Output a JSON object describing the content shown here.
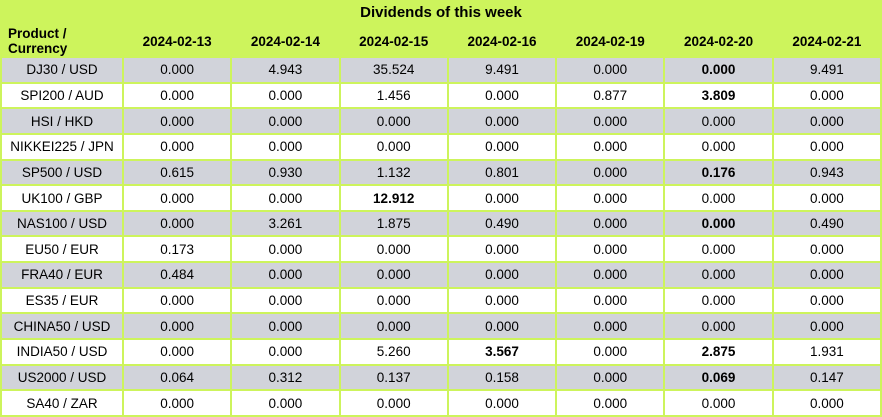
{
  "title": "Dividends of this week",
  "colors": {
    "header_bg": "#cdf45c",
    "row_alt_bg": "#d1d3da",
    "row_bg": "#ffffff",
    "text": "#000000"
  },
  "chart_data": {
    "type": "table",
    "title": "Dividends of this week",
    "product_header": "Product / Currency",
    "date_headers": [
      "2024-02-13",
      "2024-02-14",
      "2024-02-15",
      "2024-02-16",
      "2024-02-19",
      "2024-02-20",
      "2024-02-21"
    ],
    "rows": [
      {
        "product": "DJ30 / USD",
        "values": [
          "0.000",
          "4.943",
          "35.524",
          "9.491",
          "0.000",
          "0.000",
          "9.491"
        ],
        "bold": [
          5
        ]
      },
      {
        "product": "SPI200 / AUD",
        "values": [
          "0.000",
          "0.000",
          "1.456",
          "0.000",
          "0.877",
          "3.809",
          "0.000"
        ],
        "bold": [
          5
        ]
      },
      {
        "product": "HSI / HKD",
        "values": [
          "0.000",
          "0.000",
          "0.000",
          "0.000",
          "0.000",
          "0.000",
          "0.000"
        ],
        "bold": []
      },
      {
        "product": "NIKKEI225 / JPN",
        "values": [
          "0.000",
          "0.000",
          "0.000",
          "0.000",
          "0.000",
          "0.000",
          "0.000"
        ],
        "bold": []
      },
      {
        "product": "SP500 / USD",
        "values": [
          "0.615",
          "0.930",
          "1.132",
          "0.801",
          "0.000",
          "0.176",
          "0.943"
        ],
        "bold": [
          5
        ]
      },
      {
        "product": "UK100 / GBP",
        "values": [
          "0.000",
          "0.000",
          "12.912",
          "0.000",
          "0.000",
          "0.000",
          "0.000"
        ],
        "bold": [
          2
        ]
      },
      {
        "product": "NAS100 / USD",
        "values": [
          "0.000",
          "3.261",
          "1.875",
          "0.490",
          "0.000",
          "0.000",
          "0.490"
        ],
        "bold": [
          5
        ]
      },
      {
        "product": "EU50 / EUR",
        "values": [
          "0.173",
          "0.000",
          "0.000",
          "0.000",
          "0.000",
          "0.000",
          "0.000"
        ],
        "bold": []
      },
      {
        "product": "FRA40 / EUR",
        "values": [
          "0.484",
          "0.000",
          "0.000",
          "0.000",
          "0.000",
          "0.000",
          "0.000"
        ],
        "bold": []
      },
      {
        "product": "ES35 / EUR",
        "values": [
          "0.000",
          "0.000",
          "0.000",
          "0.000",
          "0.000",
          "0.000",
          "0.000"
        ],
        "bold": []
      },
      {
        "product": "CHINA50 / USD",
        "values": [
          "0.000",
          "0.000",
          "0.000",
          "0.000",
          "0.000",
          "0.000",
          "0.000"
        ],
        "bold": []
      },
      {
        "product": "INDIA50 / USD",
        "values": [
          "0.000",
          "0.000",
          "5.260",
          "3.567",
          "0.000",
          "2.875",
          "1.931"
        ],
        "bold": [
          3,
          5
        ]
      },
      {
        "product": "US2000 / USD",
        "values": [
          "0.064",
          "0.312",
          "0.137",
          "0.158",
          "0.000",
          "0.069",
          "0.147"
        ],
        "bold": [
          5
        ]
      },
      {
        "product": "SA40 / ZAR",
        "values": [
          "0.000",
          "0.000",
          "0.000",
          "0.000",
          "0.000",
          "0.000",
          "0.000"
        ],
        "bold": []
      }
    ]
  }
}
